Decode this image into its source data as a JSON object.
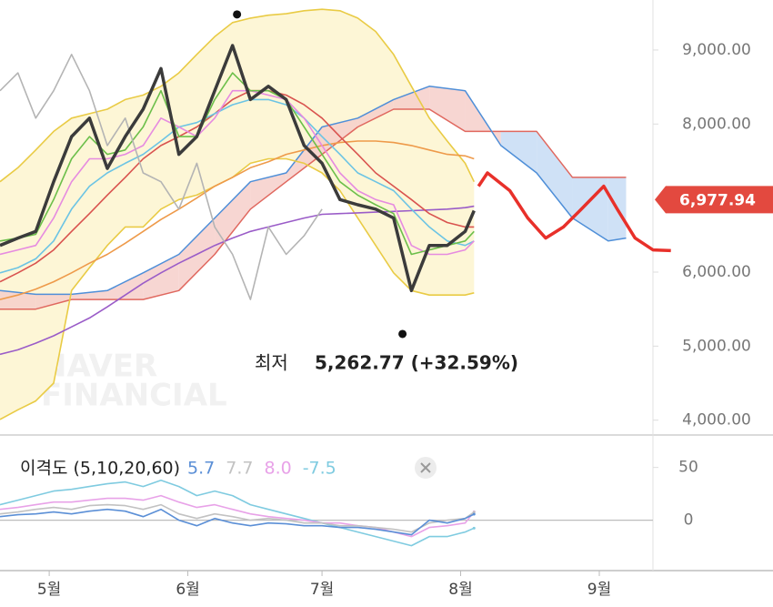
{
  "chart_data": [
    {
      "type": "line",
      "x": [
        19,
        23,
        27,
        31,
        35,
        39,
        43,
        47,
        51,
        55,
        59,
        63,
        67,
        71,
        75,
        79,
        83,
        87,
        91,
        95,
        99,
        103,
        107,
        111,
        115,
        119,
        123,
        125
      ],
      "xlim": [
        19,
        165
      ],
      "xticks": [
        {
          "value": 30,
          "label": "5월"
        },
        {
          "value": 61,
          "label": "6월"
        },
        {
          "value": 91,
          "label": "7월"
        },
        {
          "value": 122,
          "label": "8월"
        },
        {
          "value": 153,
          "label": "9월"
        }
      ],
      "ylim": [
        3800,
        9675
      ],
      "yticks": [
        {
          "value": 9000,
          "label": "9,000.00"
        },
        {
          "value": 8000,
          "label": "8,000.00"
        },
        {
          "value": 6000,
          "label": "6,000.00"
        },
        {
          "value": 5000,
          "label": "5,000.00"
        },
        {
          "value": 4000,
          "label": "4,000.00"
        }
      ],
      "bollinger": {
        "color": "#e9cb45",
        "fill": "#fdf6d6",
        "upper": [
          7220,
          7410,
          7650,
          7900,
          8080,
          8140,
          8200,
          8330,
          8390,
          8510,
          8690,
          8940,
          9180,
          9370,
          9430,
          9470,
          9490,
          9530,
          9550,
          9530,
          9430,
          9250,
          8940,
          8510,
          8080,
          7770,
          7470,
          7220
        ],
        "lower": [
          4010,
          4140,
          4260,
          4500,
          5750,
          6060,
          6360,
          6610,
          6610,
          6850,
          6980,
          7040,
          7160,
          7280,
          7470,
          7530,
          7530,
          7470,
          7340,
          7100,
          6730,
          6360,
          5990,
          5750,
          5690,
          5690,
          5690,
          5720
        ]
      },
      "cloud": {
        "x": [
          19,
          27,
          35,
          43,
          51,
          59,
          67,
          75,
          83,
          91,
          99,
          107,
          115,
          123,
          131,
          139,
          147,
          155,
          159
        ],
        "color_a": "#4f8fd8",
        "color_b": "#e0685f",
        "fill_a_above": "#f6cfca",
        "fill_b_above": "#c7dcf4",
        "span_a": [
          5750,
          5700,
          5700,
          5750,
          5990,
          6240,
          6730,
          7220,
          7340,
          7960,
          8080,
          8330,
          8510,
          8450,
          7710,
          7340,
          6730,
          6420,
          6460
        ],
        "span_b": [
          5500,
          5500,
          5630,
          5630,
          5630,
          5750,
          6240,
          6850,
          7220,
          7590,
          7960,
          8200,
          8200,
          7900,
          7900,
          7900,
          7280,
          7280,
          7280
        ]
      },
      "series": [
        {
          "color": "#ee9a4a",
          "values": [
            5630,
            5690,
            5770,
            5870,
            5990,
            6120,
            6240,
            6390,
            6550,
            6710,
            6850,
            7000,
            7160,
            7280,
            7410,
            7490,
            7590,
            7650,
            7710,
            7750,
            7770,
            7770,
            7750,
            7710,
            7650,
            7590,
            7570,
            7530
          ]
        },
        {
          "color": "#9a5cc8",
          "values": [
            4890,
            4950,
            5040,
            5140,
            5260,
            5380,
            5530,
            5690,
            5850,
            5990,
            6120,
            6240,
            6360,
            6460,
            6550,
            6610,
            6670,
            6730,
            6780,
            6790,
            6800,
            6810,
            6820,
            6830,
            6840,
            6850,
            6870,
            6890
          ]
        },
        {
          "color": "#d9534f",
          "values": [
            5870,
            5990,
            6120,
            6300,
            6550,
            6790,
            7040,
            7280,
            7530,
            7710,
            7830,
            7960,
            8140,
            8330,
            8450,
            8450,
            8390,
            8260,
            8080,
            7830,
            7590,
            7340,
            7160,
            6980,
            6790,
            6670,
            6610,
            6610
          ]
        },
        {
          "color": "#6cc4e4",
          "values": [
            5990,
            6060,
            6180,
            6420,
            6850,
            7160,
            7340,
            7470,
            7590,
            7770,
            7960,
            8020,
            8140,
            8260,
            8330,
            8330,
            8260,
            8080,
            7830,
            7590,
            7340,
            7220,
            7100,
            6850,
            6610,
            6420,
            6360,
            6420
          ]
        },
        {
          "color": "#e68be0",
          "values": [
            6240,
            6300,
            6360,
            6730,
            7220,
            7530,
            7530,
            7590,
            7710,
            8080,
            7960,
            7830,
            8080,
            8450,
            8450,
            8390,
            8330,
            8080,
            7710,
            7340,
            7100,
            6980,
            6910,
            6360,
            6240,
            6240,
            6300,
            6420
          ]
        },
        {
          "color": "#6cbf4a",
          "values": [
            6420,
            6460,
            6510,
            6980,
            7530,
            7830,
            7590,
            7650,
            7960,
            8450,
            7830,
            7830,
            8330,
            8690,
            8450,
            8450,
            8330,
            7960,
            7590,
            7220,
            7040,
            6910,
            6790,
            6240,
            6300,
            6360,
            6420,
            6550
          ]
        },
        {
          "color": "#b4b4b4",
          "values": [
            8450,
            8690,
            8080,
            8450,
            8940,
            8450,
            7710,
            8080,
            7340,
            7220,
            6850,
            7470,
            6610,
            6240,
            5630,
            6610,
            6240,
            6490,
            6850,
            null,
            null,
            null,
            null,
            null,
            null,
            null,
            null,
            null
          ]
        },
        {
          "color": "#3b3b3b",
          "width": 3.5,
          "values": [
            6360,
            6460,
            6550,
            7220,
            7830,
            8080,
            7400,
            7830,
            8200,
            8750,
            7590,
            7830,
            8450,
            9060,
            8330,
            8510,
            8330,
            7710,
            7470,
            6980,
            6910,
            6850,
            6730,
            5750,
            6360,
            6360,
            6550,
            6830
          ]
        }
      ],
      "forecast": {
        "color": "#e8302a",
        "x": [
          126,
          128,
          133,
          137,
          141,
          145,
          149,
          154,
          157,
          161,
          165,
          169
        ],
        "values": [
          7160,
          7340,
          7100,
          6730,
          6460,
          6610,
          6850,
          7160,
          6850,
          6460,
          6300,
          6290
        ]
      },
      "last_price": {
        "value": 6977.94,
        "label": "6,977.94",
        "color": "#e3493f"
      },
      "high": {
        "x": 72,
        "value": 9480
      },
      "low": {
        "x": 109,
        "value": 5262.77,
        "label": "최저",
        "value_label": "5,262.77 (+32.59%)"
      },
      "watermark": [
        "NAVER",
        "FINANCIAL"
      ]
    },
    {
      "type": "line",
      "title": "이격도 (5,10,20,60)",
      "x": [
        19,
        23,
        27,
        31,
        35,
        39,
        43,
        47,
        51,
        55,
        59,
        63,
        67,
        71,
        75,
        79,
        83,
        87,
        91,
        95,
        99,
        103,
        107,
        111,
        115,
        119,
        123,
        125
      ],
      "ylim": [
        -46,
        79
      ],
      "yticks": [
        50,
        0
      ],
      "series": [
        {
          "color": "#5b8fd6",
          "current": {
            "value": 5.7,
            "label": "5.7"
          },
          "values": [
            3.4,
            5.2,
            6,
            7.8,
            6,
            8.6,
            10.3,
            8.6,
            3.4,
            10.3,
            0,
            -5.2,
            1.7,
            -2.6,
            -5.2,
            -2.6,
            -3.4,
            -5.2,
            -5.2,
            -6.9,
            -6.9,
            -8.6,
            -11.2,
            -13.8,
            0,
            -2.6,
            1.7,
            5.7
          ]
        },
        {
          "color": "#c2c2c2",
          "current": {
            "value": 7.7,
            "label": "7.7"
          },
          "values": [
            6,
            7.8,
            10.3,
            12.1,
            10.3,
            13.8,
            14.7,
            13.8,
            10.3,
            14.7,
            6,
            1.7,
            6,
            3.4,
            0,
            1.7,
            0,
            -2.6,
            -2.6,
            -5.2,
            -5.2,
            -6.9,
            -8.6,
            -11.2,
            -2.6,
            0,
            1.7,
            7.7
          ]
        },
        {
          "color": "#e8a2e8",
          "current": {
            "value": 8.0,
            "label": "8.0"
          },
          "values": [
            10.3,
            12.1,
            14.7,
            17.2,
            17.2,
            19,
            20.7,
            20.7,
            19,
            23.3,
            17.2,
            12.1,
            14.7,
            10.3,
            6,
            3.4,
            1.7,
            0,
            -2.6,
            -2.6,
            -5.2,
            -6.9,
            -11.2,
            -15.5,
            -6.9,
            -5.2,
            -2.6,
            8
          ]
        },
        {
          "color": "#7fcbe0",
          "current": {
            "value": -7.5,
            "label": "-7.5"
          },
          "values": [
            14.7,
            19,
            23.3,
            27.6,
            29.3,
            31.9,
            34.5,
            36.2,
            31.9,
            37.9,
            31.9,
            23.3,
            27.6,
            23.3,
            14.7,
            10.3,
            6,
            1.7,
            -2.6,
            -6.9,
            -11.2,
            -15.5,
            -19.8,
            -24.1,
            -15.5,
            -15.5,
            -11.2,
            -7.5
          ]
        }
      ]
    }
  ]
}
